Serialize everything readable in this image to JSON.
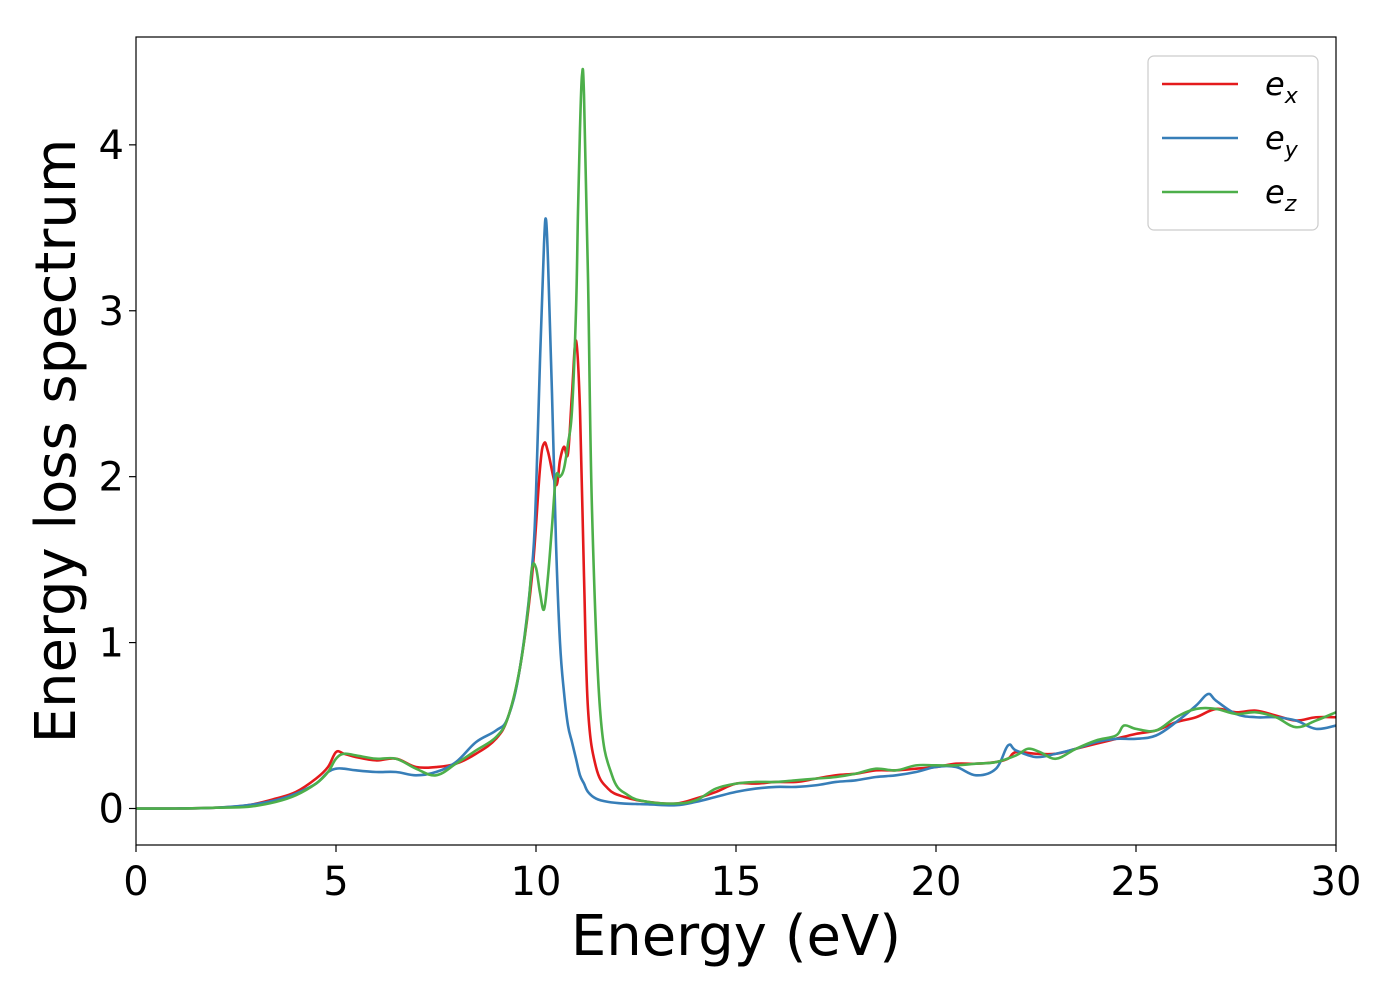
{
  "chart_data": {
    "type": "line",
    "xlabel": "Energy (eV)",
    "ylabel": "Energy loss spectrum",
    "xlim": [
      0,
      30
    ],
    "ylim": [
      -0.22,
      4.65
    ],
    "xticks": [
      0,
      5,
      10,
      15,
      20,
      25,
      30
    ],
    "yticks": [
      0,
      1,
      2,
      3,
      4
    ],
    "xtick_labels": [
      "0",
      "5",
      "10",
      "15",
      "20",
      "25",
      "30"
    ],
    "ytick_labels": [
      "0",
      "1",
      "2",
      "3",
      "4"
    ],
    "grid": false,
    "legend_position": "top-right",
    "series": [
      {
        "name": "ex",
        "label_base": "e",
        "label_sub": "x",
        "color": "#e41a1c",
        "x": [
          0,
          1,
          2,
          2.8,
          3.5,
          4.0,
          4.5,
          4.8,
          5.0,
          5.2,
          5.5,
          6.0,
          6.5,
          7.0,
          7.5,
          8.0,
          8.5,
          9.0,
          9.3,
          9.6,
          9.9,
          10.1,
          10.2,
          10.3,
          10.5,
          10.6,
          10.7,
          10.8,
          10.9,
          11.0,
          11.1,
          11.2,
          11.3,
          11.5,
          11.8,
          12.2,
          12.8,
          13.5,
          14.0,
          14.5,
          15.0,
          15.5,
          16.0,
          16.5,
          17.0,
          17.5,
          18.0,
          18.5,
          19.0,
          19.5,
          20.0,
          20.5,
          21.0,
          21.5,
          21.8,
          22.0,
          22.5,
          23.0,
          23.5,
          24.0,
          24.5,
          25.0,
          25.5,
          26.0,
          26.5,
          27.0,
          27.5,
          28.0,
          28.5,
          29.0,
          29.5,
          30.0
        ],
        "y": [
          0,
          0,
          0.005,
          0.02,
          0.06,
          0.1,
          0.18,
          0.25,
          0.34,
          0.33,
          0.31,
          0.29,
          0.3,
          0.25,
          0.25,
          0.27,
          0.33,
          0.42,
          0.55,
          0.85,
          1.4,
          2.05,
          2.2,
          2.15,
          1.95,
          2.1,
          2.18,
          2.14,
          2.5,
          2.82,
          2.4,
          1.4,
          0.6,
          0.25,
          0.12,
          0.07,
          0.04,
          0.03,
          0.06,
          0.1,
          0.15,
          0.15,
          0.16,
          0.16,
          0.18,
          0.2,
          0.21,
          0.23,
          0.23,
          0.24,
          0.25,
          0.27,
          0.27,
          0.28,
          0.3,
          0.34,
          0.33,
          0.33,
          0.36,
          0.39,
          0.42,
          0.45,
          0.47,
          0.52,
          0.55,
          0.6,
          0.58,
          0.59,
          0.56,
          0.53,
          0.55,
          0.55
        ]
      },
      {
        "name": "ey",
        "label_base": "e",
        "label_sub": "y",
        "color": "#377eb8",
        "x": [
          0,
          1,
          2,
          2.8,
          3.5,
          4.0,
          4.5,
          4.8,
          5.0,
          5.2,
          5.5,
          6.0,
          6.5,
          7.0,
          7.5,
          8.0,
          8.5,
          9.0,
          9.3,
          9.6,
          9.9,
          10.0,
          10.1,
          10.2,
          10.25,
          10.3,
          10.4,
          10.5,
          10.6,
          10.7,
          10.8,
          10.9,
          11.0,
          11.1,
          11.2,
          11.3,
          11.5,
          11.8,
          12.2,
          12.8,
          13.5,
          14.0,
          14.5,
          15.0,
          15.5,
          16.0,
          16.5,
          17.0,
          17.5,
          18.0,
          18.5,
          19.0,
          19.5,
          20.0,
          20.5,
          21.0,
          21.5,
          21.8,
          22.0,
          22.5,
          23.0,
          23.5,
          24.0,
          24.5,
          25.0,
          25.5,
          26.0,
          26.5,
          26.8,
          27.0,
          27.5,
          28.0,
          28.5,
          29.0,
          29.5,
          30.0
        ],
        "y": [
          0,
          0,
          0.005,
          0.02,
          0.05,
          0.09,
          0.15,
          0.22,
          0.24,
          0.24,
          0.23,
          0.22,
          0.22,
          0.2,
          0.22,
          0.28,
          0.4,
          0.47,
          0.55,
          0.85,
          1.45,
          1.9,
          2.7,
          3.4,
          3.55,
          3.3,
          2.5,
          1.6,
          1.0,
          0.7,
          0.5,
          0.4,
          0.3,
          0.2,
          0.15,
          0.1,
          0.06,
          0.04,
          0.03,
          0.025,
          0.02,
          0.04,
          0.07,
          0.1,
          0.12,
          0.13,
          0.13,
          0.14,
          0.16,
          0.17,
          0.19,
          0.2,
          0.22,
          0.25,
          0.25,
          0.2,
          0.24,
          0.38,
          0.35,
          0.31,
          0.33,
          0.36,
          0.4,
          0.42,
          0.42,
          0.44,
          0.52,
          0.62,
          0.69,
          0.65,
          0.57,
          0.55,
          0.55,
          0.53,
          0.48,
          0.5
        ]
      },
      {
        "name": "ez",
        "label_base": "e",
        "label_sub": "z",
        "color": "#4daf4a",
        "x": [
          0,
          1,
          2,
          2.8,
          3.5,
          4.0,
          4.5,
          4.8,
          5.0,
          5.2,
          5.5,
          6.0,
          6.5,
          7.0,
          7.5,
          8.0,
          8.5,
          9.0,
          9.3,
          9.6,
          9.8,
          9.9,
          10.0,
          10.1,
          10.2,
          10.3,
          10.4,
          10.5,
          10.6,
          10.7,
          10.8,
          10.9,
          11.0,
          11.05,
          11.1,
          11.15,
          11.2,
          11.3,
          11.4,
          11.6,
          11.9,
          12.3,
          12.8,
          13.5,
          14.0,
          14.5,
          15.0,
          15.5,
          16.0,
          16.5,
          17.0,
          17.5,
          18.0,
          18.5,
          19.0,
          19.5,
          20.0,
          20.5,
          21.0,
          21.5,
          22.0,
          22.3,
          22.6,
          23.0,
          23.5,
          24.0,
          24.5,
          24.7,
          25.0,
          25.5,
          26.0,
          26.5,
          27.0,
          27.5,
          28.0,
          28.5,
          29.0,
          29.5,
          30.0
        ],
        "y": [
          0,
          0,
          0.005,
          0.01,
          0.04,
          0.08,
          0.15,
          0.22,
          0.3,
          0.33,
          0.32,
          0.3,
          0.3,
          0.24,
          0.2,
          0.27,
          0.35,
          0.43,
          0.55,
          0.85,
          1.2,
          1.45,
          1.45,
          1.3,
          1.2,
          1.4,
          1.7,
          2.0,
          2.0,
          2.05,
          2.2,
          2.4,
          3.0,
          3.6,
          4.1,
          4.42,
          4.3,
          3.2,
          1.8,
          0.6,
          0.2,
          0.08,
          0.04,
          0.03,
          0.05,
          0.12,
          0.15,
          0.16,
          0.16,
          0.17,
          0.18,
          0.19,
          0.21,
          0.24,
          0.23,
          0.26,
          0.26,
          0.26,
          0.27,
          0.28,
          0.32,
          0.36,
          0.34,
          0.3,
          0.36,
          0.41,
          0.44,
          0.5,
          0.48,
          0.47,
          0.55,
          0.6,
          0.6,
          0.57,
          0.58,
          0.55,
          0.49,
          0.53,
          0.58
        ]
      }
    ]
  }
}
